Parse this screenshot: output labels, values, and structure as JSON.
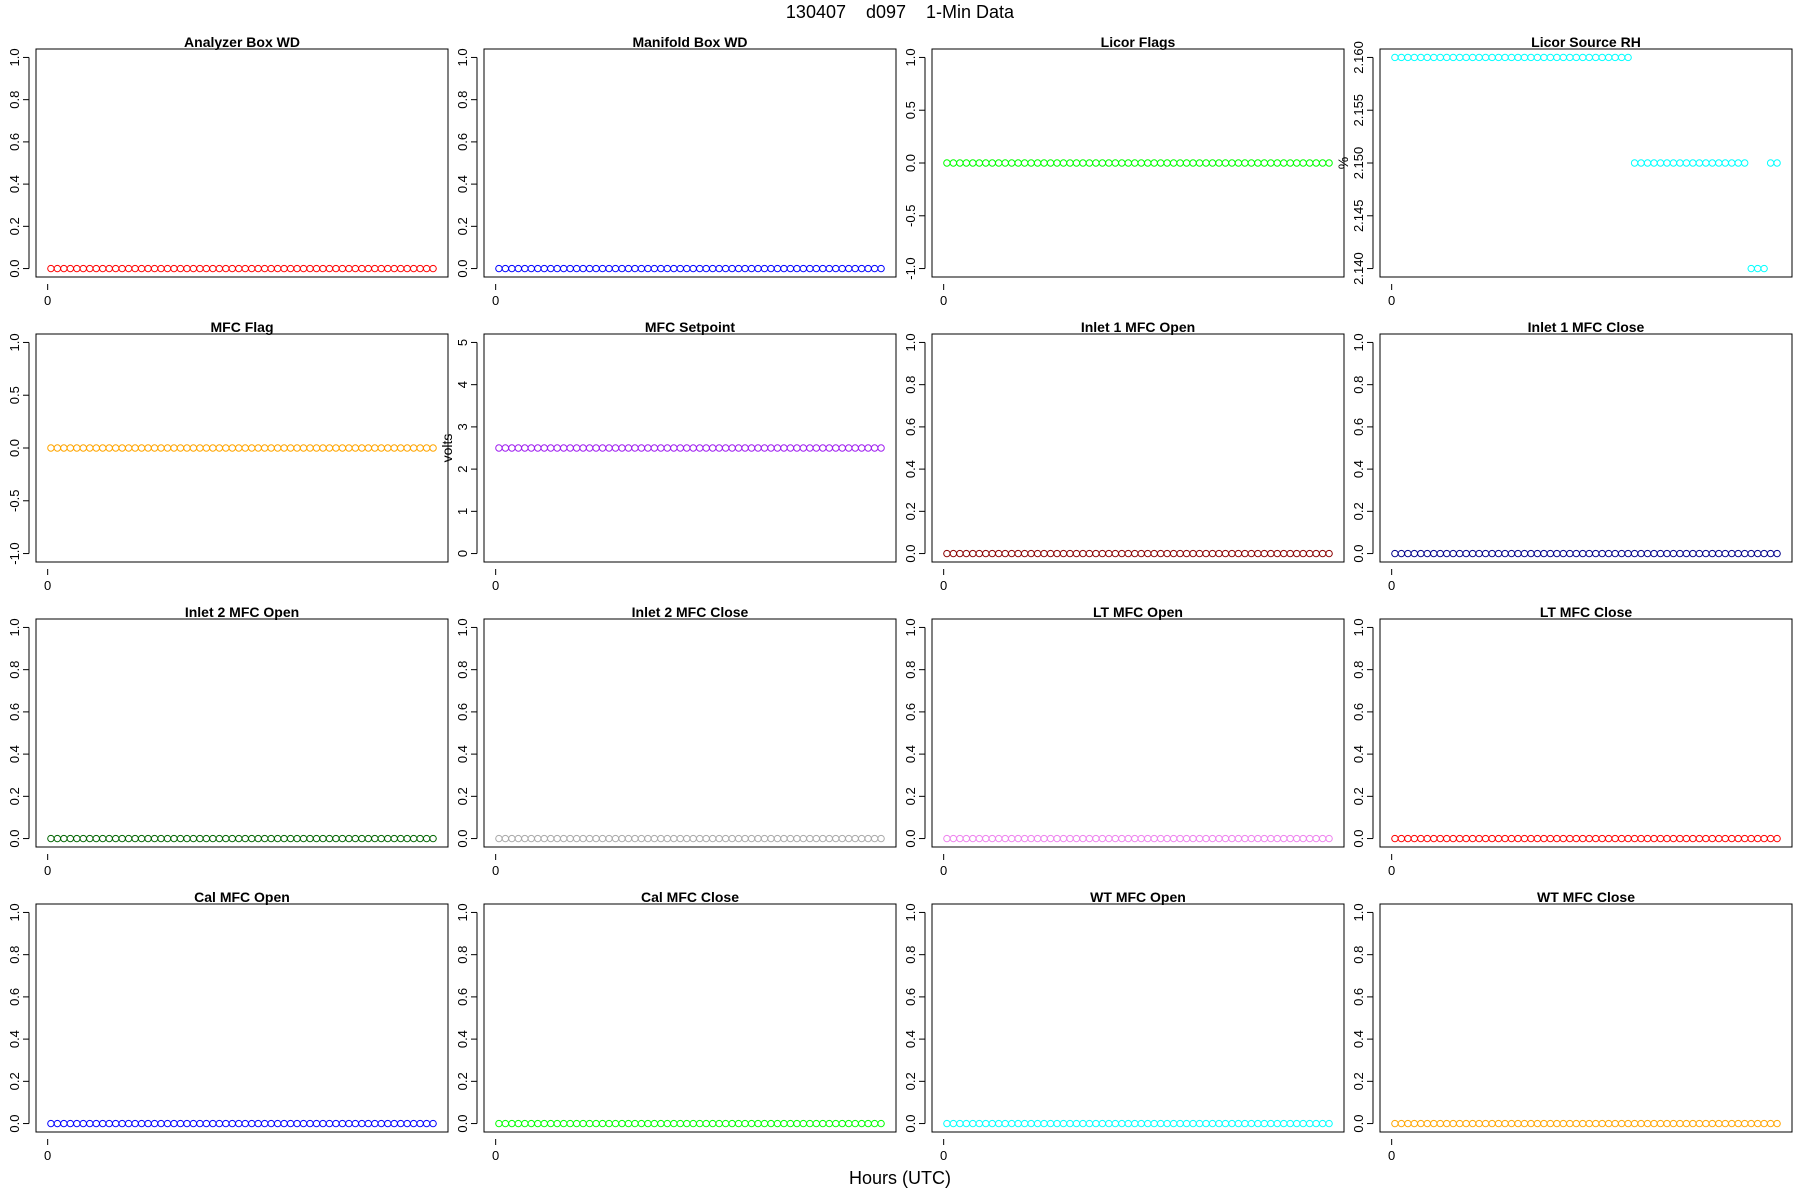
{
  "page": {
    "title": "130407    d097    1-Min Data",
    "xlabel": "Hours (UTC)"
  },
  "chart_data": [
    {
      "type": "scatter",
      "title": "Analyzer Box WD",
      "ylabel": "",
      "ylim": [
        0,
        1
      ],
      "yticks": [
        "0.0",
        "0.2",
        "0.4",
        "0.6",
        "0.8",
        "1.0"
      ],
      "xtick": "0",
      "color": "#FF0000",
      "n": 60,
      "values": {
        "default": 0
      }
    },
    {
      "type": "scatter",
      "title": "Manifold Box WD",
      "ylabel": "",
      "ylim": [
        0,
        1
      ],
      "yticks": [
        "0.0",
        "0.2",
        "0.4",
        "0.6",
        "0.8",
        "1.0"
      ],
      "xtick": "0",
      "color": "#0000FF",
      "n": 60,
      "values": {
        "default": 0
      }
    },
    {
      "type": "scatter",
      "title": "Licor Flags",
      "ylabel": "",
      "ylim": [
        -1,
        1
      ],
      "yticks": [
        "-1.0",
        "-0.5",
        "0.0",
        "0.5",
        "1.0"
      ],
      "xtick": "0",
      "color": "#00FF00",
      "n": 60,
      "values": {
        "default": 0
      }
    },
    {
      "type": "scatter",
      "title": "Licor Source RH",
      "ylabel": "%",
      "ylim": [
        2.14,
        2.16
      ],
      "yticks": [
        "2.140",
        "2.145",
        "2.150",
        "2.155",
        "2.160"
      ],
      "xtick": "0",
      "color": "#00FFFF",
      "n": 60,
      "values": {
        "segments": [
          {
            "from": 0,
            "to": 36,
            "y": 2.16
          },
          {
            "from": 37,
            "to": 54,
            "y": 2.15
          },
          {
            "from": 55,
            "to": 57,
            "y": 2.14
          },
          {
            "from": 58,
            "to": 59,
            "y": 2.15
          }
        ]
      }
    },
    {
      "type": "scatter",
      "title": "MFC Flag",
      "ylabel": "",
      "ylim": [
        -1,
        1
      ],
      "yticks": [
        "-1.0",
        "-0.5",
        "0.0",
        "0.5",
        "1.0"
      ],
      "xtick": "0",
      "color": "#FFA500",
      "n": 60,
      "values": {
        "default": 0
      }
    },
    {
      "type": "scatter",
      "title": "MFC Setpoint",
      "ylabel": "volts",
      "ylim": [
        0,
        5
      ],
      "yticks": [
        "0",
        "1",
        "2",
        "3",
        "4",
        "5"
      ],
      "xtick": "0",
      "color": "#A020F0",
      "n": 60,
      "values": {
        "default": 2.5
      }
    },
    {
      "type": "scatter",
      "title": "Inlet 1 MFC Open",
      "ylabel": "",
      "ylim": [
        0,
        1
      ],
      "yticks": [
        "0.0",
        "0.2",
        "0.4",
        "0.6",
        "0.8",
        "1.0"
      ],
      "xtick": "0",
      "color": "#8B0000",
      "n": 60,
      "values": {
        "default": 0
      }
    },
    {
      "type": "scatter",
      "title": "Inlet 1 MFC Close",
      "ylabel": "",
      "ylim": [
        0,
        1
      ],
      "yticks": [
        "0.0",
        "0.2",
        "0.4",
        "0.6",
        "0.8",
        "1.0"
      ],
      "xtick": "0",
      "color": "#00008B",
      "n": 60,
      "values": {
        "default": 0
      }
    },
    {
      "type": "scatter",
      "title": "Inlet 2 MFC Open",
      "ylabel": "",
      "ylim": [
        0,
        1
      ],
      "yticks": [
        "0.0",
        "0.2",
        "0.4",
        "0.6",
        "0.8",
        "1.0"
      ],
      "xtick": "0",
      "color": "#006400",
      "n": 60,
      "values": {
        "default": 0
      }
    },
    {
      "type": "scatter",
      "title": "Inlet 2 MFC Close",
      "ylabel": "",
      "ylim": [
        0,
        1
      ],
      "yticks": [
        "0.0",
        "0.2",
        "0.4",
        "0.6",
        "0.8",
        "1.0"
      ],
      "xtick": "0",
      "color": "#A9A9A9",
      "n": 60,
      "values": {
        "default": 0
      }
    },
    {
      "type": "scatter",
      "title": "LT MFC Open",
      "ylabel": "",
      "ylim": [
        0,
        1
      ],
      "yticks": [
        "0.0",
        "0.2",
        "0.4",
        "0.6",
        "0.8",
        "1.0"
      ],
      "xtick": "0",
      "color": "#EE82EE",
      "n": 60,
      "values": {
        "default": 0
      }
    },
    {
      "type": "scatter",
      "title": "LT MFC Close",
      "ylabel": "",
      "ylim": [
        0,
        1
      ],
      "yticks": [
        "0.0",
        "0.2",
        "0.4",
        "0.6",
        "0.8",
        "1.0"
      ],
      "xtick": "0",
      "color": "#FF0000",
      "n": 60,
      "values": {
        "default": 0
      }
    },
    {
      "type": "scatter",
      "title": "Cal MFC Open",
      "ylabel": "",
      "ylim": [
        0,
        1
      ],
      "yticks": [
        "0.0",
        "0.2",
        "0.4",
        "0.6",
        "0.8",
        "1.0"
      ],
      "xtick": "0",
      "color": "#0000FF",
      "n": 60,
      "values": {
        "default": 0
      }
    },
    {
      "type": "scatter",
      "title": "Cal MFC Close",
      "ylabel": "",
      "ylim": [
        0,
        1
      ],
      "yticks": [
        "0.0",
        "0.2",
        "0.4",
        "0.6",
        "0.8",
        "1.0"
      ],
      "xtick": "0",
      "color": "#00FF00",
      "n": 60,
      "values": {
        "default": 0
      }
    },
    {
      "type": "scatter",
      "title": "WT MFC Open",
      "ylabel": "",
      "ylim": [
        0,
        1
      ],
      "yticks": [
        "0.0",
        "0.2",
        "0.4",
        "0.6",
        "0.8",
        "1.0"
      ],
      "xtick": "0",
      "color": "#00FFFF",
      "n": 60,
      "values": {
        "default": 0
      }
    },
    {
      "type": "scatter",
      "title": "WT MFC Close",
      "ylabel": "",
      "ylim": [
        0,
        1
      ],
      "yticks": [
        "0.0",
        "0.2",
        "0.4",
        "0.6",
        "0.8",
        "1.0"
      ],
      "xtick": "0",
      "color": "#FFA500",
      "n": 60,
      "values": {
        "default": 0
      }
    }
  ]
}
